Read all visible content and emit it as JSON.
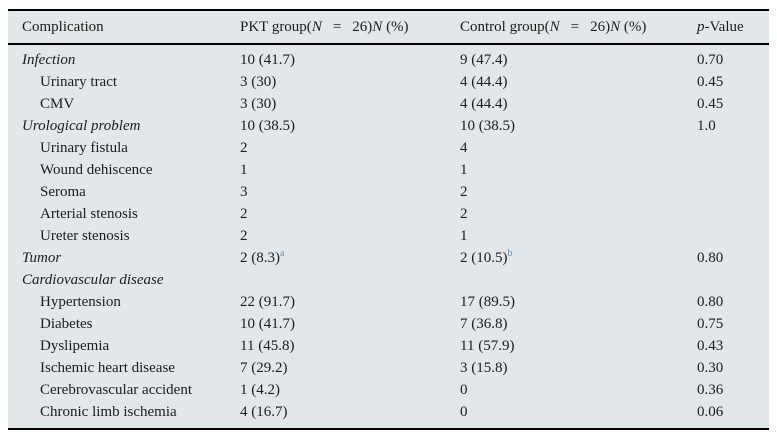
{
  "colors": {
    "table_background": "#e2e7e9",
    "border": "#000000",
    "text": "#1c1c1c",
    "footnote_marker_blue": "#4a9ad4"
  },
  "table": {
    "header": {
      "col1": "Complication",
      "col2_parts": [
        {
          "t": "PKT group(",
          "i": false
        },
        {
          "t": "N",
          "i": true
        },
        {
          "t": "=",
          "i": false,
          "gap": true
        },
        {
          "t": "26)",
          "i": false
        },
        {
          "t": "N",
          "i": true
        },
        {
          "t": " (%)",
          "i": false
        }
      ],
      "col3_parts": [
        {
          "t": "Control group(",
          "i": false
        },
        {
          "t": "N",
          "i": true
        },
        {
          "t": "=",
          "i": false,
          "gap": true
        },
        {
          "t": "26)",
          "i": false
        },
        {
          "t": "N",
          "i": true
        },
        {
          "t": " (%)",
          "i": false
        }
      ],
      "col4_parts": [
        {
          "t": "p",
          "i": true
        },
        {
          "t": "-Value",
          "i": false
        }
      ]
    },
    "rows": [
      {
        "label": "Infection",
        "category": true,
        "indent": false,
        "pkt": "10 (41.7)",
        "pkt_sup": "",
        "control": "9 (47.4)",
        "control_sup": "",
        "p": "0.70"
      },
      {
        "label": "Urinary tract",
        "category": false,
        "indent": true,
        "pkt": "3 (30)",
        "pkt_sup": "",
        "control": "4 (44.4)",
        "control_sup": "",
        "p": "0.45"
      },
      {
        "label": "CMV",
        "category": false,
        "indent": true,
        "pkt": "3 (30)",
        "pkt_sup": "",
        "control": "4 (44.4)",
        "control_sup": "",
        "p": "0.45"
      },
      {
        "label": "Urological problem",
        "category": true,
        "indent": false,
        "pkt": "10 (38.5)",
        "pkt_sup": "",
        "control": "10 (38.5)",
        "control_sup": "",
        "p": "1.0"
      },
      {
        "label": "Urinary fistula",
        "category": false,
        "indent": true,
        "pkt": "2",
        "pkt_sup": "",
        "control": "4",
        "control_sup": "",
        "p": ""
      },
      {
        "label": "Wound dehiscence",
        "category": false,
        "indent": true,
        "pkt": "1",
        "pkt_sup": "",
        "control": "1",
        "control_sup": "",
        "p": ""
      },
      {
        "label": "Seroma",
        "category": false,
        "indent": true,
        "pkt": "3",
        "pkt_sup": "",
        "control": "2",
        "control_sup": "",
        "p": ""
      },
      {
        "label": "Arterial stenosis",
        "category": false,
        "indent": true,
        "pkt": "2",
        "pkt_sup": "",
        "control": "2",
        "control_sup": "",
        "p": ""
      },
      {
        "label": "Ureter stenosis",
        "category": false,
        "indent": true,
        "pkt": "2",
        "pkt_sup": "",
        "control": "1",
        "control_sup": "",
        "p": ""
      },
      {
        "label": "Tumor",
        "category": true,
        "indent": false,
        "pkt": "2 (8.3)",
        "pkt_sup": "a",
        "control": "2 (10.5)",
        "control_sup": "b",
        "p": "0.80"
      },
      {
        "label": "Cardiovascular disease",
        "category": true,
        "indent": false,
        "pkt": "",
        "pkt_sup": "",
        "control": "",
        "control_sup": "",
        "p": ""
      },
      {
        "label": "Hypertension",
        "category": false,
        "indent": true,
        "pkt": "22 (91.7)",
        "pkt_sup": "",
        "control": "17 (89.5)",
        "control_sup": "",
        "p": "0.80"
      },
      {
        "label": "Diabetes",
        "category": false,
        "indent": true,
        "pkt": "10 (41.7)",
        "pkt_sup": "",
        "control": "7 (36.8)",
        "control_sup": "",
        "p": "0.75"
      },
      {
        "label": "Dyslipemia",
        "category": false,
        "indent": true,
        "pkt": "11 (45.8)",
        "pkt_sup": "",
        "control": "11 (57.9)",
        "control_sup": "",
        "p": "0.43"
      },
      {
        "label": "Ischemic heart disease",
        "category": false,
        "indent": true,
        "pkt": "7 (29.2)",
        "pkt_sup": "",
        "control": "3 (15.8)",
        "control_sup": "",
        "p": "0.30"
      },
      {
        "label": "Cerebrovascular accident",
        "category": false,
        "indent": true,
        "pkt": "1 (4.2)",
        "pkt_sup": "",
        "control": "0",
        "control_sup": "",
        "p": "0.36"
      },
      {
        "label": "Chronic limb ischemia",
        "category": false,
        "indent": true,
        "pkt": "4 (16.7)",
        "pkt_sup": "",
        "control": "0",
        "control_sup": "",
        "p": "0.06"
      }
    ]
  },
  "chart_data": {
    "type": "table",
    "title": "",
    "columns": [
      "Complication",
      "PKT group(N = 26) N (%)",
      "Control group(N = 26) N (%)",
      "p-Value"
    ],
    "rows": [
      [
        "Infection",
        "10 (41.7)",
        "9 (47.4)",
        "0.70"
      ],
      [
        "Urinary tract",
        "3 (30)",
        "4 (44.4)",
        "0.45"
      ],
      [
        "CMV",
        "3 (30)",
        "4 (44.4)",
        "0.45"
      ],
      [
        "Urological problem",
        "10 (38.5)",
        "10 (38.5)",
        "1.0"
      ],
      [
        "Urinary fistula",
        "2",
        "4",
        ""
      ],
      [
        "Wound dehiscence",
        "1",
        "1",
        ""
      ],
      [
        "Seroma",
        "3",
        "2",
        ""
      ],
      [
        "Arterial stenosis",
        "2",
        "2",
        ""
      ],
      [
        "Ureter stenosis",
        "2",
        "1",
        ""
      ],
      [
        "Tumor",
        "2 (8.3)a",
        "2 (10.5)b",
        "0.80"
      ],
      [
        "Cardiovascular disease",
        "",
        "",
        ""
      ],
      [
        "Hypertension",
        "22 (91.7)",
        "17 (89.5)",
        "0.80"
      ],
      [
        "Diabetes",
        "10 (41.7)",
        "7 (36.8)",
        "0.75"
      ],
      [
        "Dyslipemia",
        "11 (45.8)",
        "11 (57.9)",
        "0.43"
      ],
      [
        "Ischemic heart disease",
        "7 (29.2)",
        "3 (15.8)",
        "0.30"
      ],
      [
        "Cerebrovascular accident",
        "1 (4.2)",
        "0",
        "0.36"
      ],
      [
        "Chronic limb ischemia",
        "4 (16.7)",
        "0",
        "0.06"
      ]
    ]
  }
}
